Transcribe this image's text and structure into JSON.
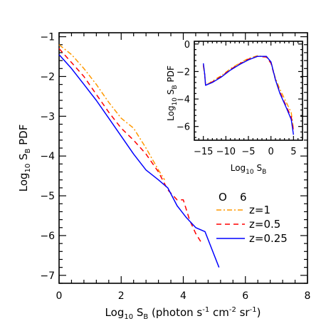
{
  "chart_data": {
    "type": "line",
    "title": "",
    "xlabel": "Log10 SB (photon s-1 cm-2 sr-1)",
    "ylabel": "Log10 SB PDF",
    "xlim": [
      0,
      8
    ],
    "ylim": [
      -7.2,
      -0.9
    ],
    "xticks": [
      0,
      2,
      4,
      6,
      8
    ],
    "yticks": [
      -7,
      -6,
      -5,
      -4,
      -3,
      -2,
      -1
    ],
    "legend": {
      "title_left": "O",
      "title_right": "6",
      "placement": "lower-right"
    },
    "series": [
      {
        "name": "z=1",
        "color": "#ff9900",
        "dash": "dash-dot",
        "x": [
          0,
          0.4,
          0.8,
          1.2,
          1.6,
          2.0,
          2.4,
          2.8,
          3.2,
          3.4
        ],
        "y": [
          -1.2,
          -1.45,
          -1.8,
          -2.2,
          -2.65,
          -3.05,
          -3.3,
          -3.8,
          -4.35,
          -4.6
        ]
      },
      {
        "name": "z=0.5",
        "color": "#ff0000",
        "dash": "dashed",
        "x": [
          0,
          0.4,
          0.8,
          1.2,
          1.6,
          2.0,
          2.4,
          2.8,
          3.2,
          3.5,
          3.8,
          4.0,
          4.2,
          4.4,
          4.6
        ],
        "y": [
          -1.3,
          -1.65,
          -2.0,
          -2.45,
          -2.9,
          -3.3,
          -3.6,
          -3.95,
          -4.4,
          -4.85,
          -5.1,
          -5.1,
          -5.6,
          -5.95,
          -6.2
        ]
      },
      {
        "name": "z=0.25",
        "color": "#0000ff",
        "dash": "solid",
        "x": [
          0,
          0.4,
          0.8,
          1.2,
          1.6,
          2.0,
          2.4,
          2.8,
          3.2,
          3.5,
          3.8,
          4.1,
          4.4,
          4.7,
          5.0,
          5.15
        ],
        "y": [
          -1.45,
          -1.8,
          -2.2,
          -2.6,
          -3.05,
          -3.5,
          -3.95,
          -4.35,
          -4.6,
          -4.8,
          -5.25,
          -5.55,
          -5.8,
          -5.9,
          -6.5,
          -6.8
        ]
      }
    ],
    "inset": {
      "xlabel": "Log10 SB",
      "ylabel": "Log10 SB PDF",
      "xlim": [
        -17,
        7
      ],
      "ylim": [
        -7,
        0.2
      ],
      "xticks": [
        -15,
        -10,
        -5,
        0,
        5
      ],
      "yticks": [
        -6,
        -4,
        -2,
        0
      ],
      "series": [
        {
          "name": "z=1",
          "color": "#ff9900",
          "dash": "dash-dot",
          "x": [
            -15,
            -14.7,
            -14.5,
            -13,
            -11,
            -9,
            -7,
            -5,
            -3,
            -1,
            0,
            1,
            2,
            3.5,
            4.5,
            5
          ],
          "y": [
            -1.6,
            -2.3,
            -3.0,
            -2.7,
            -2.3,
            -1.8,
            -1.4,
            -1.05,
            -0.85,
            -0.95,
            -1.3,
            -2.5,
            -3.3,
            -4.3,
            -5.0,
            -6.2
          ]
        },
        {
          "name": "z=0.5",
          "color": "#ff0000",
          "dash": "dashed",
          "x": [
            -15,
            -14.7,
            -14.5,
            -13,
            -11,
            -9,
            -7,
            -5,
            -3,
            -1,
            0,
            1,
            2,
            3.5,
            4.5,
            5
          ],
          "y": [
            -1.5,
            -2.2,
            -3.0,
            -2.75,
            -2.35,
            -1.85,
            -1.45,
            -1.1,
            -0.9,
            -0.95,
            -1.4,
            -2.6,
            -3.5,
            -4.6,
            -5.3,
            -6.3
          ]
        },
        {
          "name": "z=0.25",
          "color": "#0000ff",
          "dash": "solid",
          "x": [
            -15,
            -14.7,
            -14.5,
            -13,
            -11,
            -9,
            -7,
            -5,
            -3,
            -1,
            0,
            1,
            2,
            3.5,
            4.5,
            5
          ],
          "y": [
            -1.4,
            -2.2,
            -3.0,
            -2.8,
            -2.4,
            -1.9,
            -1.5,
            -1.15,
            -0.9,
            -0.9,
            -1.3,
            -2.6,
            -3.6,
            -4.7,
            -5.5,
            -6.6
          ]
        }
      ]
    }
  }
}
